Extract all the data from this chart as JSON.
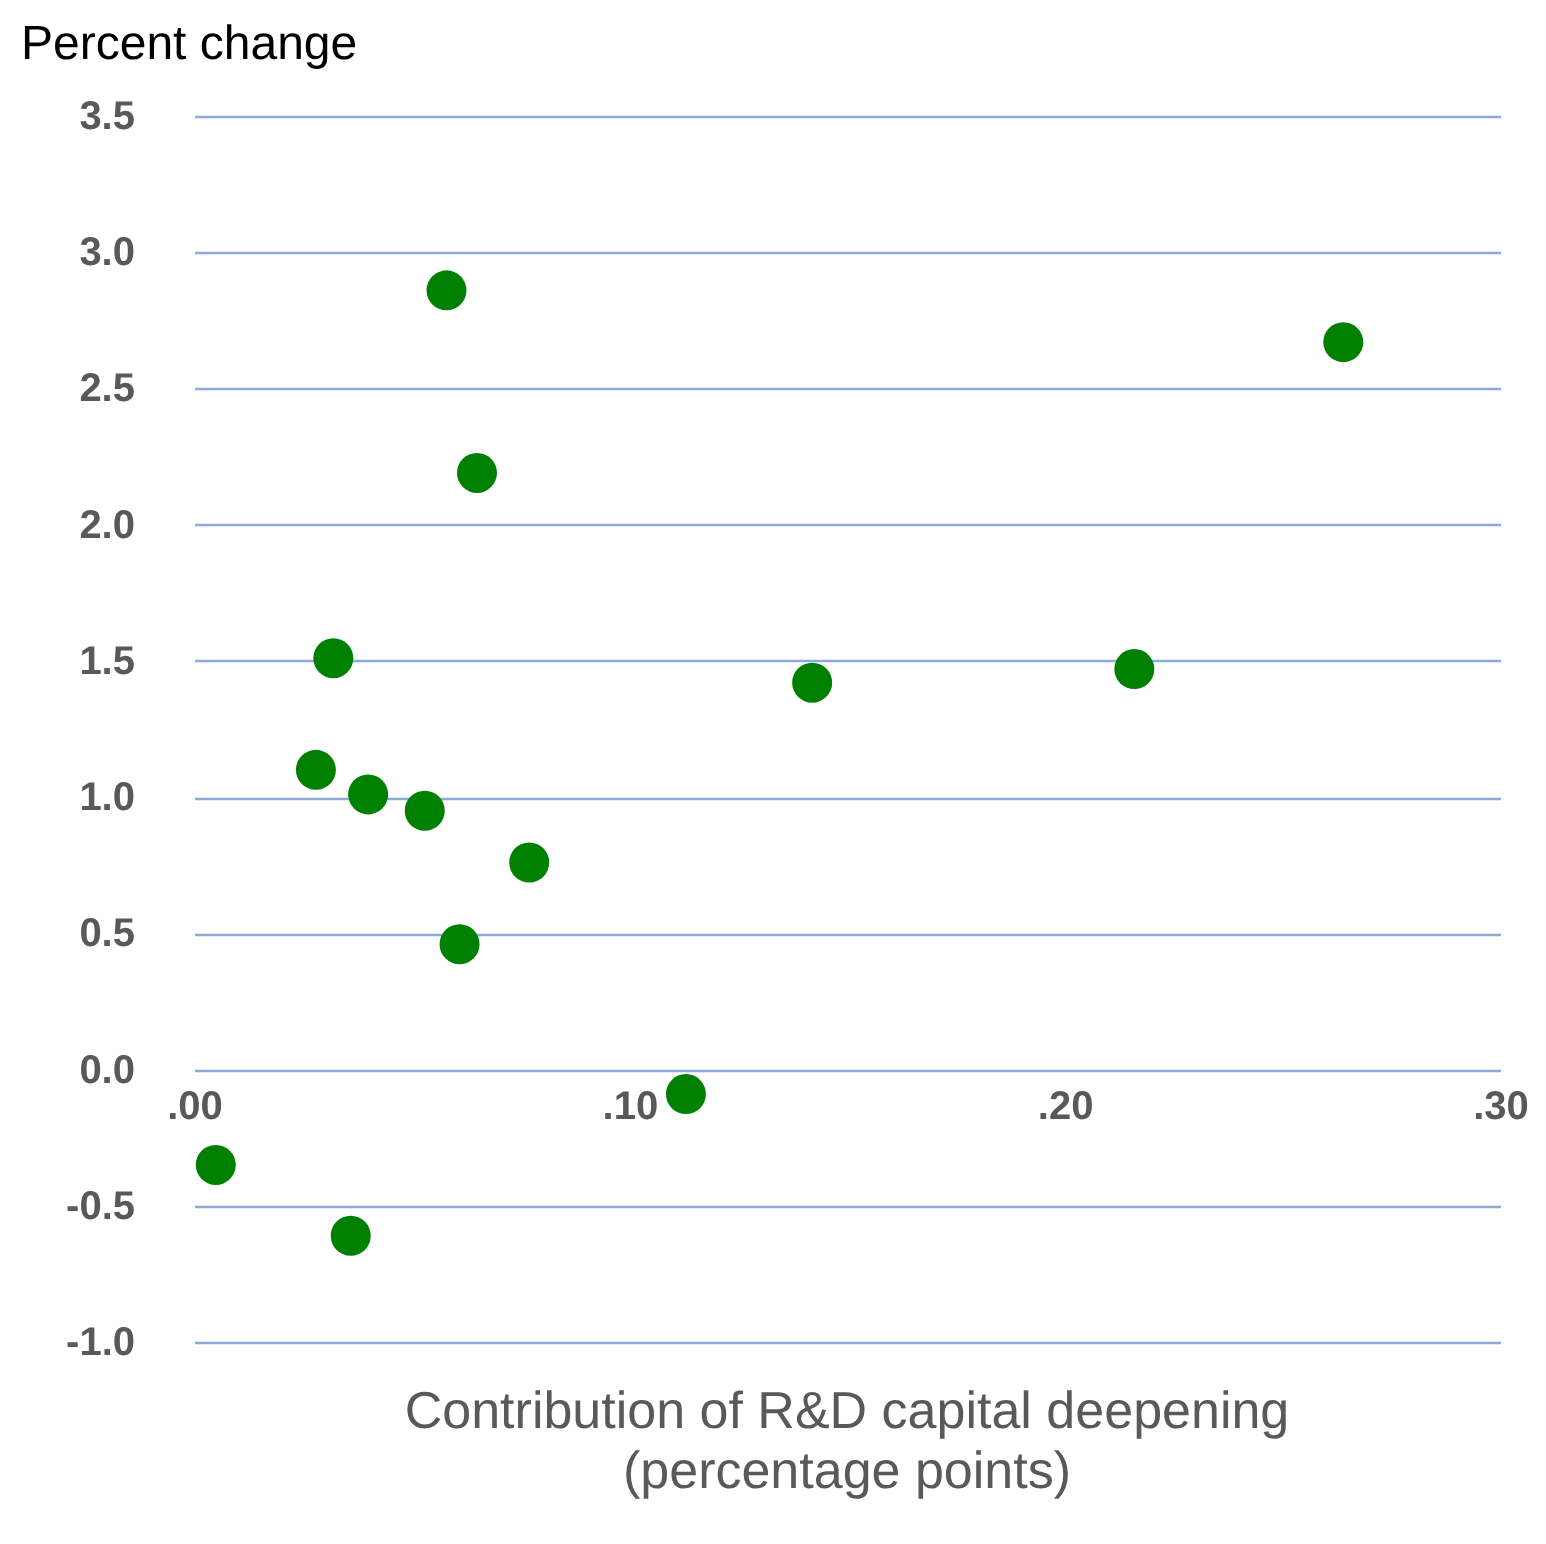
{
  "chart_data": {
    "type": "scatter",
    "ylabel": "Percent change",
    "xlabel": "Contribution of R&D capital deepening\n(percentage points)",
    "x": [
      0.005,
      0.036,
      0.028,
      0.032,
      0.04,
      0.053,
      0.058,
      0.065,
      0.061,
      0.077,
      0.113,
      0.142,
      0.216,
      0.264
    ],
    "series": [
      {
        "color": "#008000",
        "values": [
          -0.35,
          -0.61,
          1.1,
          1.51,
          1.01,
          0.95,
          2.86,
          2.19,
          0.46,
          0.76,
          -0.09,
          1.42,
          1.47,
          2.67
        ]
      }
    ],
    "xlim": [
      0,
      0.3
    ],
    "xticks": [
      {
        "value": 0,
        "label": ".00"
      },
      {
        "value": 0.1,
        "label": ".10"
      },
      {
        "value": 0.2,
        "label": ".20"
      },
      {
        "value": 0.3,
        "label": ".30"
      }
    ],
    "ylim": [
      -1,
      3.5
    ],
    "yticks": [
      {
        "value": -1,
        "label": "-1.0"
      },
      {
        "value": -0.5,
        "label": "-0.5"
      },
      {
        "value": 0,
        "label": "0.0"
      },
      {
        "value": 0.5,
        "label": "0.5"
      },
      {
        "value": 1,
        "label": "1.0"
      },
      {
        "value": 1.5,
        "label": "1.5"
      },
      {
        "value": 2,
        "label": "2.0"
      },
      {
        "value": 2.5,
        "label": "2.5"
      },
      {
        "value": 3,
        "label": "3.0"
      },
      {
        "value": 3.5,
        "label": "3.5"
      }
    ],
    "grid": "y",
    "marker": "circle",
    "legend": false
  }
}
